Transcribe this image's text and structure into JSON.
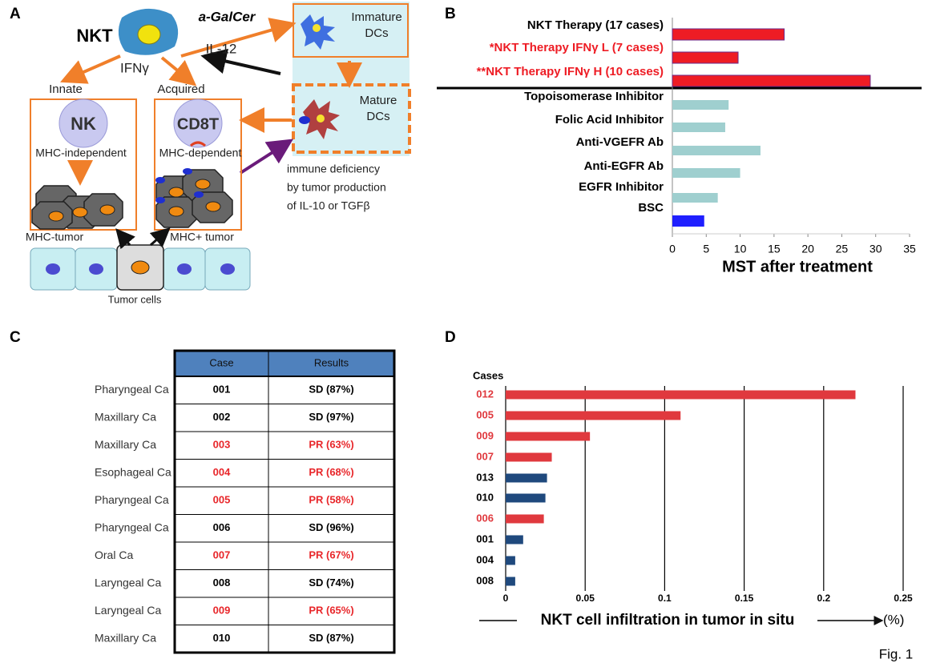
{
  "figure_label": "Fig. 1",
  "panels": {
    "a": "A",
    "b": "B",
    "c": "C",
    "d": "D"
  },
  "diagram": {
    "nkt": "NKT",
    "agalcer": "a-GalCer",
    "il12": "IL-12",
    "ifng": "IFNγ",
    "immature_dc": [
      "Immature",
      "DCs"
    ],
    "mature_dc": [
      "Mature",
      "DCs"
    ],
    "innate": "Innate",
    "acquired": "Acquired",
    "nk": "NK",
    "cd8t": "CD8T",
    "mhc_independent": "MHC-independent",
    "mhc_dependent": "MHC-dependent",
    "deficiency": [
      "immune deficiency",
      "by tumor production",
      "of IL-10 or TGFβ"
    ],
    "mhc_minus_tumor": "MHC-tumor",
    "mhc_plus_tumor": "MHC+ tumor",
    "tumor_cells": "Tumor cells"
  },
  "table": {
    "header": [
      "Case",
      "Results"
    ],
    "header_color": "#4f81bd",
    "rows": [
      {
        "diagnosis": "Pharyngeal Ca",
        "case": "001",
        "result": "SD (87%)",
        "color": "#000000"
      },
      {
        "diagnosis": "Maxillary Ca",
        "case": "002",
        "result": "SD (97%)",
        "color": "#000000"
      },
      {
        "diagnosis": "Maxillary Ca",
        "case": "003",
        "result": "PR (63%)",
        "color": "#e8262a"
      },
      {
        "diagnosis": "Esophageal Ca",
        "case": "004",
        "result": "PR (68%)",
        "color": "#e8262a"
      },
      {
        "diagnosis": "Pharyngeal Ca",
        "case": "005",
        "result": "PR (58%)",
        "color": "#e8262a"
      },
      {
        "diagnosis": "Pharyngeal Ca",
        "case": "006",
        "result": "SD (96%)",
        "color": "#000000"
      },
      {
        "diagnosis": "Oral Ca",
        "case": "007",
        "result": "PR (67%)",
        "color": "#e8262a"
      },
      {
        "diagnosis": "Laryngeal Ca",
        "case": "008",
        "result": "SD (74%)",
        "color": "#000000"
      },
      {
        "diagnosis": "Laryngeal Ca",
        "case": "009",
        "result": "PR (65%)",
        "color": "#e8262a"
      },
      {
        "diagnosis": "Maxillary Ca",
        "case": "010",
        "result": "SD (87%)",
        "color": "#000000"
      }
    ]
  },
  "chart_data": [
    {
      "type": "bar",
      "orientation": "horizontal",
      "categories": [
        "NKT Therapy (17 cases)",
        "*NKT Therapy IFNγ L (7 cases)",
        "**NKT Therapy IFNγ H (10 cases)",
        "Topoisomerase Inhibitor",
        "Folic Acid Inhibitor",
        "Anti-VGEFR Ab",
        "Anti-EGFR Ab",
        "EGFR Inhibitor",
        "BSC"
      ],
      "values": [
        16.5,
        9.7,
        29.2,
        8.3,
        7.8,
        13,
        10,
        6.7,
        4.7
      ],
      "colors": [
        "#ee1c24",
        "#ee1c24",
        "#ee1c24",
        "#9fcfcf",
        "#9fcfcf",
        "#9fcfcf",
        "#9fcfcf",
        "#9fcfcf",
        "#1f1fff"
      ],
      "label_colors": [
        "#000000",
        "#ee1c24",
        "#ee1c24",
        "#000000",
        "#000000",
        "#000000",
        "#000000",
        "#000000",
        "#000000"
      ],
      "xlim": [
        0,
        35
      ],
      "xticks": [
        0,
        5,
        10,
        15,
        20,
        25,
        30,
        35
      ],
      "xlabel": "MST after treatment"
    },
    {
      "type": "bar",
      "orientation": "horizontal",
      "categories": [
        "012",
        "005",
        "009",
        "007",
        "013",
        "010",
        "006",
        "001",
        "004",
        "008"
      ],
      "values": [
        0.22,
        0.11,
        0.053,
        0.029,
        0.026,
        0.025,
        0.024,
        0.011,
        0.006,
        0.006
      ],
      "colors": [
        "#e0393e",
        "#e0393e",
        "#e0393e",
        "#e0393e",
        "#1f497d",
        "#1f497d",
        "#e0393e",
        "#1f497d",
        "#1f497d",
        "#1f497d"
      ],
      "label_colors": [
        "#e0393e",
        "#e0393e",
        "#e0393e",
        "#e0393e",
        "#000000",
        "#000000",
        "#e0393e",
        "#000000",
        "#000000",
        "#000000"
      ],
      "ylabel": "Cases",
      "xlabel": "NKT cell infiltration in tumor in situ",
      "x_unit": "(%)",
      "xlim": [
        0,
        0.25
      ],
      "xticks": [
        0,
        0.05,
        0.1,
        0.15,
        0.2,
        0.25
      ],
      "grid": true
    }
  ]
}
